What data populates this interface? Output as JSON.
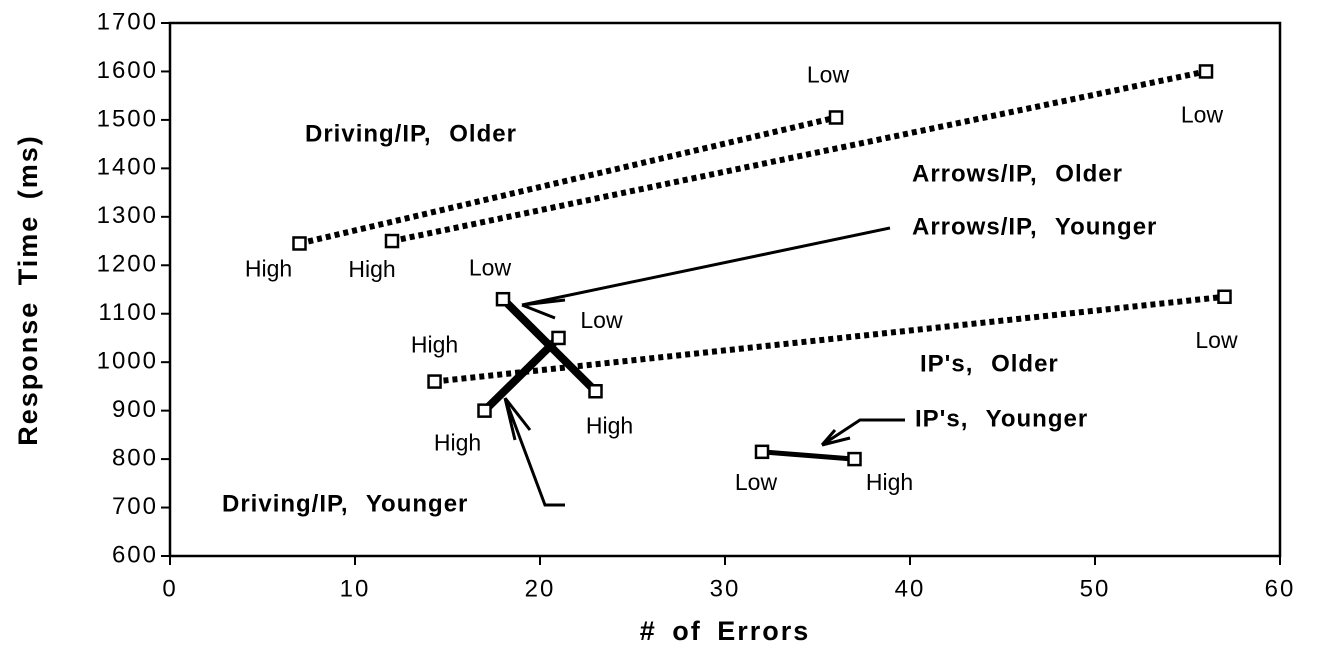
{
  "chart_data": {
    "type": "line",
    "xlabel": "# of Errors",
    "ylabel": "Response Time (ms)",
    "xlim": [
      0,
      60
    ],
    "xticks": [
      0,
      10,
      20,
      30,
      40,
      50,
      60
    ],
    "ylim": [
      600,
      1700
    ],
    "yticks": [
      600,
      700,
      800,
      900,
      1000,
      1100,
      1200,
      1300,
      1400,
      1500,
      1600,
      1700
    ],
    "series": [
      {
        "name": "Driving/IP, Older",
        "color": "#000000",
        "line_style": "dotted",
        "x": [
          7,
          36
        ],
        "values": [
          1245,
          1505
        ],
        "point_labels": [
          "High",
          "Low"
        ]
      },
      {
        "name": "Arrows/IP, Older",
        "color": "#000000",
        "line_style": "dotted",
        "x": [
          12,
          56
        ],
        "values": [
          1250,
          1600
        ],
        "point_labels": [
          "High",
          "Low"
        ]
      },
      {
        "name": "IP's, Older",
        "color": "#000000",
        "line_style": "dotted",
        "x": [
          14.3,
          57
        ],
        "values": [
          960,
          1135
        ],
        "point_labels": [
          "High",
          "Low"
        ]
      },
      {
        "name": "Arrows/IP, Younger",
        "color": "#000000",
        "line_style": "solid",
        "x": [
          18,
          23
        ],
        "values": [
          1130,
          940
        ],
        "point_labels": [
          "Low",
          "High"
        ]
      },
      {
        "name": "Driving/IP, Younger",
        "color": "#000000",
        "line_style": "solid",
        "x": [
          17,
          21
        ],
        "values": [
          900,
          1050
        ],
        "point_labels": [
          "High",
          "Low"
        ]
      },
      {
        "name": "IP's, Younger",
        "color": "#000000",
        "line_style": "solid",
        "x": [
          32,
          37
        ],
        "values": [
          815,
          800
        ],
        "point_labels": [
          "Low",
          "High"
        ]
      }
    ]
  }
}
